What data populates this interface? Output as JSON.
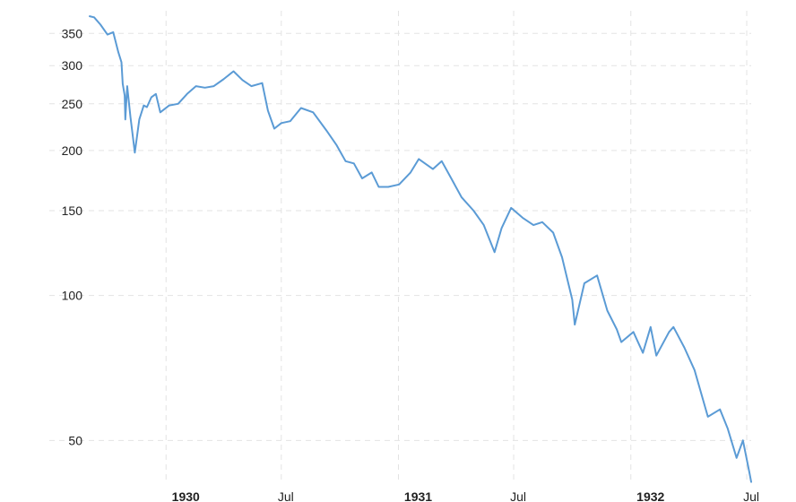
{
  "chart_data": {
    "type": "line",
    "title": "",
    "xlabel": "",
    "ylabel": "",
    "y_scale": "log",
    "grid": true,
    "legend": "none",
    "series_color": "#5b9bd5",
    "x_range": [
      "1929-09-03",
      "1932-07-08"
    ],
    "y_ticks": [
      50,
      100,
      150,
      200,
      250,
      300,
      350
    ],
    "y_tick_labels": [
      "50",
      "100",
      "150",
      "200",
      "250",
      "300",
      "350"
    ],
    "x_ticks": [
      {
        "date": "1930-01-01",
        "label": "1930",
        "major": true
      },
      {
        "date": "1930-07-01",
        "label": "Jul",
        "major": false
      },
      {
        "date": "1931-01-01",
        "label": "1931",
        "major": true
      },
      {
        "date": "1931-07-01",
        "label": "Jul",
        "major": false
      },
      {
        "date": "1932-01-01",
        "label": "1932",
        "major": true
      },
      {
        "date": "1932-07-01",
        "label": "Jul",
        "major": false
      }
    ],
    "series": [
      {
        "x": [
          "1929-09-03",
          "1929-09-10",
          "1929-09-20",
          "1929-10-01",
          "1929-10-10",
          "1929-10-18",
          "1929-10-23",
          "1929-10-25",
          "1929-10-28",
          "1929-10-29",
          "1929-11-01",
          "1929-11-06",
          "1929-11-13",
          "1929-11-20",
          "1929-11-27",
          "1929-12-02",
          "1929-12-09",
          "1929-12-16",
          "1929-12-23",
          "1930-01-06",
          "1930-01-20",
          "1930-02-03",
          "1930-02-17",
          "1930-03-03",
          "1930-03-17",
          "1930-04-01",
          "1930-04-17",
          "1930-05-01",
          "1930-05-15",
          "1930-06-01",
          "1930-06-10",
          "1930-06-20",
          "1930-07-01",
          "1930-07-15",
          "1930-08-01",
          "1930-08-20",
          "1930-09-10",
          "1930-09-26",
          "1930-10-10",
          "1930-10-23",
          "1930-11-05",
          "1930-11-20",
          "1930-12-01",
          "1930-12-16",
          "1931-01-02",
          "1931-01-20",
          "1931-02-02",
          "1931-02-24",
          "1931-03-10",
          "1931-03-25",
          "1931-04-10",
          "1931-04-29",
          "1931-05-15",
          "1931-06-01",
          "1931-06-12",
          "1931-06-27",
          "1931-07-15",
          "1931-08-01",
          "1931-08-15",
          "1931-09-01",
          "1931-09-15",
          "1931-10-01",
          "1931-10-05",
          "1931-10-20",
          "1931-11-09",
          "1931-11-25",
          "1931-12-10",
          "1931-12-17",
          "1932-01-05",
          "1932-01-20",
          "1932-02-01",
          "1932-02-10",
          "1932-03-01",
          "1932-03-08",
          "1932-03-25",
          "1932-04-10",
          "1932-05-01",
          "1932-05-20",
          "1932-06-01",
          "1932-06-15",
          "1932-06-25",
          "1932-07-05",
          "1932-07-08"
        ],
        "values": [
          380,
          378,
          365,
          348,
          352,
          320,
          305,
          275,
          260,
          232,
          272,
          235,
          198,
          232,
          248,
          246,
          258,
          262,
          240,
          248,
          250,
          262,
          272,
          270,
          272,
          281,
          292,
          280,
          272,
          276,
          242,
          222,
          228,
          230,
          245,
          240,
          220,
          205,
          190,
          188,
          175,
          180,
          168,
          168,
          170,
          180,
          192,
          183,
          190,
          175,
          160,
          150,
          140,
          123,
          138,
          152,
          145,
          140,
          142,
          135,
          120,
          98,
          87,
          106,
          110,
          93,
          85,
          80,
          84,
          76,
          86,
          75,
          84,
          86,
          78,
          70,
          56,
          58,
          53,
          46,
          50,
          43,
          41
        ]
      }
    ]
  }
}
